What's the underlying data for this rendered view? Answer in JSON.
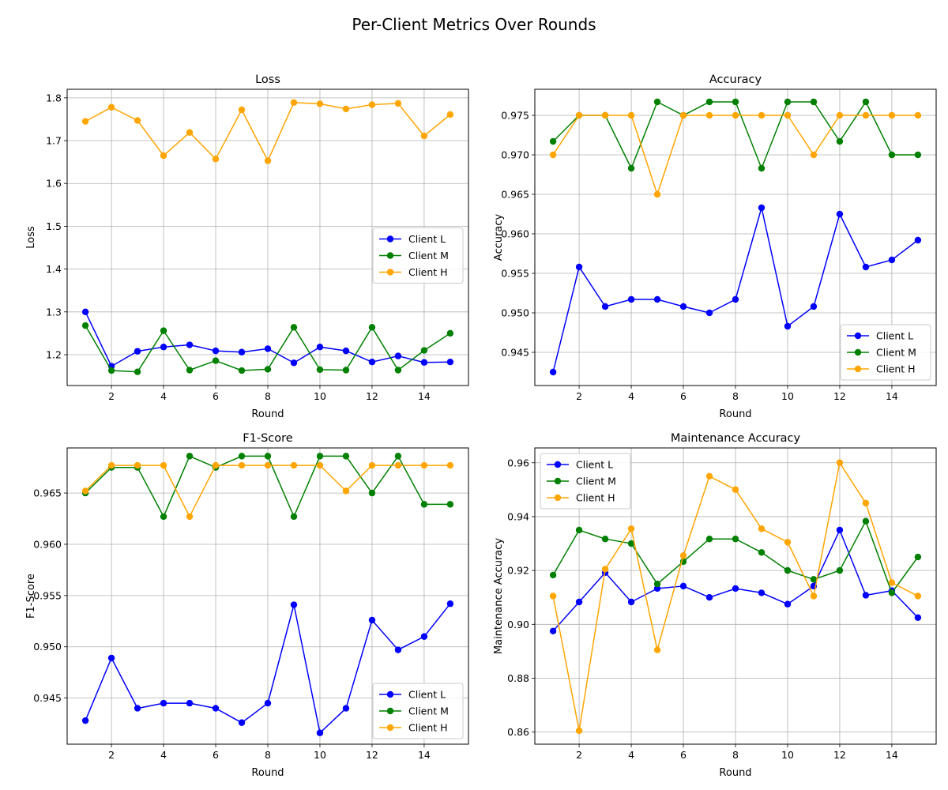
{
  "figure": {
    "title": "Per-Client Metrics Over Rounds"
  },
  "colors": {
    "Client L": "#0000ff",
    "Client M": "#008000",
    "Client H": "#ffa500"
  },
  "chart_data": [
    {
      "type": "line",
      "title": "Loss",
      "xlabel": "Round",
      "ylabel": "Loss",
      "x": [
        1,
        2,
        3,
        4,
        5,
        6,
        7,
        8,
        9,
        10,
        11,
        12,
        13,
        14,
        15
      ],
      "xlim": [
        0.3,
        15.7
      ],
      "xticks": [
        2,
        4,
        6,
        8,
        10,
        12,
        14
      ],
      "ylim": [
        1.128,
        1.82
      ],
      "yticks": [
        1.2,
        1.3,
        1.4,
        1.5,
        1.6,
        1.7,
        1.8
      ],
      "tick_decimals": 1,
      "grid": true,
      "legend": "center right",
      "series": [
        {
          "name": "Client L",
          "color": "#0000ff",
          "values": [
            1.3,
            1.173,
            1.208,
            1.218,
            1.223,
            1.209,
            1.206,
            1.214,
            1.181,
            1.218,
            1.209,
            1.183,
            1.197,
            1.182,
            1.183
          ]
        },
        {
          "name": "Client M",
          "color": "#008000",
          "values": [
            1.268,
            1.163,
            1.16,
            1.256,
            1.164,
            1.186,
            1.163,
            1.166,
            1.264,
            1.165,
            1.164,
            1.264,
            1.164,
            1.21,
            1.25
          ]
        },
        {
          "name": "Client H",
          "color": "#ffa500",
          "values": [
            1.745,
            1.778,
            1.747,
            1.665,
            1.719,
            1.657,
            1.772,
            1.653,
            1.789,
            1.786,
            1.774,
            1.784,
            1.787,
            1.711,
            1.761
          ]
        }
      ]
    },
    {
      "type": "line",
      "title": "Accuracy",
      "xlabel": "Round",
      "ylabel": "Accuracy",
      "x": [
        1,
        2,
        3,
        4,
        5,
        6,
        7,
        8,
        9,
        10,
        11,
        12,
        13,
        14,
        15
      ],
      "xlim": [
        0.3,
        15.7
      ],
      "xticks": [
        2,
        4,
        6,
        8,
        10,
        12,
        14
      ],
      "ylim": [
        0.9408,
        0.9783
      ],
      "yticks": [
        0.945,
        0.95,
        0.955,
        0.96,
        0.965,
        0.97,
        0.975
      ],
      "tick_decimals": 3,
      "grid": true,
      "legend": "lower right",
      "series": [
        {
          "name": "Client L",
          "color": "#0000ff",
          "values": [
            0.9425,
            0.9558,
            0.9508,
            0.9517,
            0.9517,
            0.9508,
            0.95,
            0.9517,
            0.9633,
            0.9483,
            0.9508,
            0.9625,
            0.9558,
            0.9567,
            0.9592
          ]
        },
        {
          "name": "Client M",
          "color": "#008000",
          "values": [
            0.9717,
            0.975,
            0.975,
            0.9683,
            0.9767,
            0.975,
            0.9767,
            0.9767,
            0.9683,
            0.9767,
            0.9767,
            0.9717,
            0.9767,
            0.97,
            0.97
          ]
        },
        {
          "name": "Client H",
          "color": "#ffa500",
          "values": [
            0.97,
            0.975,
            0.975,
            0.975,
            0.965,
            0.975,
            0.975,
            0.975,
            0.975,
            0.975,
            0.97,
            0.975,
            0.975,
            0.975,
            0.975
          ]
        }
      ]
    },
    {
      "type": "line",
      "title": "F1-Score",
      "xlabel": "Round",
      "ylabel": "F1-Score",
      "x": [
        1,
        2,
        3,
        4,
        5,
        6,
        7,
        8,
        9,
        10,
        11,
        12,
        13,
        14,
        15
      ],
      "xlim": [
        0.3,
        15.7
      ],
      "xticks": [
        2,
        4,
        6,
        8,
        10,
        12,
        14
      ],
      "ylim": [
        0.9405,
        0.9694
      ],
      "yticks": [
        0.945,
        0.95,
        0.955,
        0.96,
        0.965
      ],
      "tick_decimals": 3,
      "grid": true,
      "legend": "lower right",
      "series": [
        {
          "name": "Client L",
          "color": "#0000ff",
          "values": [
            0.9428,
            0.9489,
            0.944,
            0.9445,
            0.9445,
            0.944,
            0.9426,
            0.9445,
            0.9541,
            0.9416,
            0.944,
            0.9526,
            0.9497,
            0.951,
            0.9542
          ]
        },
        {
          "name": "Client M",
          "color": "#008000",
          "values": [
            0.965,
            0.9675,
            0.9675,
            0.9627,
            0.9686,
            0.9675,
            0.9686,
            0.9686,
            0.9627,
            0.9686,
            0.9686,
            0.965,
            0.9686,
            0.9639,
            0.9639
          ]
        },
        {
          "name": "Client H",
          "color": "#ffa500",
          "values": [
            0.9652,
            0.9677,
            0.9677,
            0.9677,
            0.9627,
            0.9677,
            0.9677,
            0.9677,
            0.9677,
            0.9677,
            0.9652,
            0.9677,
            0.9677,
            0.9677,
            0.9677
          ]
        }
      ]
    },
    {
      "type": "line",
      "title": "Maintenance Accuracy",
      "xlabel": "Round",
      "ylabel": "Maintenance Accuracy",
      "x": [
        1,
        2,
        3,
        4,
        5,
        6,
        7,
        8,
        9,
        10,
        11,
        12,
        13,
        14,
        15
      ],
      "xlim": [
        0.3,
        15.7
      ],
      "xticks": [
        2,
        4,
        6,
        8,
        10,
        12,
        14
      ],
      "ylim": [
        0.8555,
        0.9655
      ],
      "yticks": [
        0.86,
        0.88,
        0.9,
        0.92,
        0.94,
        0.96
      ],
      "tick_decimals": 2,
      "grid": true,
      "legend": "upper left",
      "series": [
        {
          "name": "Client L",
          "color": "#0000ff",
          "values": [
            0.8975,
            0.9083,
            0.9192,
            0.9083,
            0.9133,
            0.9142,
            0.91,
            0.9133,
            0.9117,
            0.9075,
            0.9142,
            0.935,
            0.9108,
            0.9125,
            0.9025
          ]
        },
        {
          "name": "Client M",
          "color": "#008000",
          "values": [
            0.9183,
            0.935,
            0.9317,
            0.93,
            0.915,
            0.9233,
            0.9317,
            0.9317,
            0.9267,
            0.92,
            0.9167,
            0.92,
            0.9383,
            0.9117,
            0.925
          ]
        },
        {
          "name": "Client H",
          "color": "#ffa500",
          "values": [
            0.9105,
            0.8605,
            0.9205,
            0.9355,
            0.8905,
            0.9255,
            0.955,
            0.95,
            0.9355,
            0.9305,
            0.9105,
            0.96,
            0.945,
            0.9155,
            0.9105
          ]
        }
      ]
    }
  ]
}
